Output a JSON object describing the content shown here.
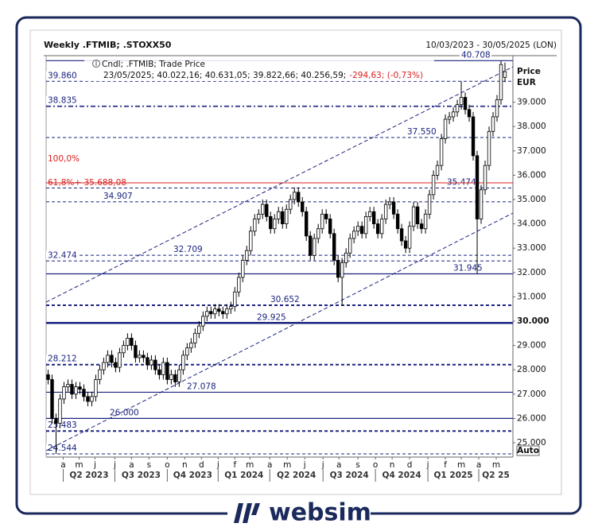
{
  "chart_data": {
    "type": "candlestick",
    "title": "Weekly .FTMIB; .STOXX50",
    "date_range": "10/03/2023 - 30/05/2025 (LON)",
    "legend_title": "Cndl; .FTMIB; Trade Price",
    "legend_ohlc": "23/05/2025; 40.022,16; 40.631,05; 39.822,66; 40.256,59;",
    "legend_change": "-294,63; (-0,73%)",
    "y_axis_label": "Price",
    "y_axis_unit": "EUR",
    "autoscale_label": "Auto",
    "up_color": "#ffffff",
    "down_color": "#000000",
    "xlim": [
      -0.5,
      117
    ],
    "ylim": [
      24412,
      40915
    ],
    "xticks": [
      {
        "value": 3.8,
        "label": "a"
      },
      {
        "value": 7.8,
        "label": "m"
      },
      {
        "value": 11.8,
        "label": "j"
      },
      {
        "value": 16.8,
        "label": "j"
      },
      {
        "value": 21,
        "label": "a"
      },
      {
        "value": 25.4,
        "label": "s"
      },
      {
        "value": 30,
        "label": "o"
      },
      {
        "value": 34.4,
        "label": "n"
      },
      {
        "value": 38.6,
        "label": "d"
      },
      {
        "value": 42.8,
        "label": "j"
      },
      {
        "value": 47,
        "label": "f"
      },
      {
        "value": 50.8,
        "label": "m"
      },
      {
        "value": 55.8,
        "label": "a"
      },
      {
        "value": 60.2,
        "label": "m"
      },
      {
        "value": 64.6,
        "label": "j"
      },
      {
        "value": 69.2,
        "label": "j"
      },
      {
        "value": 73.2,
        "label": "a"
      },
      {
        "value": 78,
        "label": "s"
      },
      {
        "value": 82.4,
        "label": "o"
      },
      {
        "value": 86.6,
        "label": "n"
      },
      {
        "value": 91,
        "label": "d"
      },
      {
        "value": 95.6,
        "label": "j"
      },
      {
        "value": 100,
        "label": "f"
      },
      {
        "value": 104,
        "label": "m"
      },
      {
        "value": 108.4,
        "label": "a"
      },
      {
        "value": 112.8,
        "label": "m"
      }
    ],
    "quarter_labels": [
      {
        "value": 3.8,
        "label": "Q2 2023"
      },
      {
        "value": 16.8,
        "label": "Q3 2023"
      },
      {
        "value": 30,
        "label": "Q4 2023"
      },
      {
        "value": 42.8,
        "label": "Q1 2024"
      },
      {
        "value": 55.8,
        "label": "Q2 2024"
      },
      {
        "value": 69.2,
        "label": "Q3 2024"
      },
      {
        "value": 82.4,
        "label": "Q4 2024"
      },
      {
        "value": 95.6,
        "label": "Q1 2025"
      },
      {
        "value": 108.4,
        "label": "Q2 25"
      }
    ],
    "yticks": [
      {
        "value": 25000,
        "label": "25.000"
      },
      {
        "value": 26000,
        "label": "26.000"
      },
      {
        "value": 27000,
        "label": "27.000"
      },
      {
        "value": 28000,
        "label": "28.000"
      },
      {
        "value": 29000,
        "label": "29.000"
      },
      {
        "value": 30000,
        "label": "30.000"
      },
      {
        "value": 31000,
        "label": "31.000"
      },
      {
        "value": 32000,
        "label": "32.000"
      },
      {
        "value": 33000,
        "label": "33.000"
      },
      {
        "value": 34000,
        "label": "34.000"
      },
      {
        "value": 35000,
        "label": "35.000"
      },
      {
        "value": 36000,
        "label": "36.000"
      },
      {
        "value": 37000,
        "label": "37.000"
      },
      {
        "value": 38000,
        "label": "38.000"
      },
      {
        "value": 39000,
        "label": "39.000"
      }
    ],
    "open": [
      27800,
      27600,
      26000,
      25800,
      26800,
      27300,
      27400,
      27000,
      27300,
      27200,
      26900,
      26700,
      26900,
      27600,
      28000,
      28300,
      28600,
      28300,
      28100,
      28700,
      29000,
      29300,
      29000,
      28500,
      28600,
      28500,
      28200,
      28400,
      28000,
      27800,
      28300,
      27600,
      27800,
      27500,
      28000,
      28600,
      28900,
      29100,
      29500,
      29800,
      30200,
      30400,
      30300,
      30500,
      30400,
      30300,
      30500,
      30600,
      31200,
      31800,
      32500,
      32900,
      33700,
      34200,
      34400,
      34800,
      34300,
      33800,
      34200,
      34500,
      34000,
      34600,
      35000,
      35300,
      34900,
      34500,
      33500,
      32700,
      33400,
      33800,
      34400,
      34200,
      33600,
      32500,
      31800,
      32400,
      32800,
      33400,
      33700,
      33900,
      33600,
      34300,
      34500,
      34000,
      33600,
      34200,
      34800,
      34900,
      34400,
      33800,
      33300,
      33000,
      33900,
      34700,
      34000,
      33800,
      34400,
      35200,
      36000,
      36400,
      37500,
      38300,
      38400,
      38600,
      38900,
      39200,
      38700,
      38400,
      36800,
      34200,
      35400,
      36400,
      37800,
      38400,
      39100,
      40022
    ],
    "high": [
      28000,
      27800,
      26200,
      27000,
      27500,
      27600,
      27600,
      27500,
      27500,
      27400,
      27100,
      27100,
      27800,
      28200,
      28500,
      28800,
      28800,
      28500,
      28900,
      29200,
      29500,
      29500,
      29200,
      28800,
      28800,
      28700,
      28600,
      28600,
      28200,
      28500,
      28500,
      28000,
      28000,
      28200,
      28800,
      29100,
      29300,
      29700,
      30000,
      30400,
      30600,
      30600,
      30700,
      30700,
      30600,
      30700,
      30800,
      31400,
      32000,
      32700,
      33100,
      33900,
      34400,
      34600,
      35000,
      35000,
      34500,
      34400,
      34700,
      34700,
      34800,
      35200,
      35500,
      35500,
      35100,
      34700,
      33700,
      33600,
      34000,
      34600,
      34600,
      34400,
      33800,
      32700,
      32600,
      33000,
      33600,
      33900,
      34100,
      34100,
      34500,
      34700,
      34700,
      34200,
      34400,
      35000,
      35100,
      35100,
      34600,
      34000,
      33500,
      34100,
      34900,
      34900,
      34200,
      34600,
      35400,
      36200,
      36600,
      37700,
      38500,
      38600,
      38800,
      39100,
      39860,
      39400,
      38900,
      38600,
      37000,
      35600,
      36600,
      38000,
      38600,
      39300,
      40708,
      40631
    ],
    "low": [
      27400,
      25800,
      24544,
      25600,
      26600,
      27100,
      26800,
      26800,
      27000,
      26700,
      26500,
      26500,
      26700,
      27400,
      27800,
      28100,
      28100,
      27900,
      27900,
      28500,
      28800,
      28800,
      28300,
      28300,
      28300,
      28000,
      28000,
      27800,
      27600,
      27600,
      27400,
      27400,
      27300,
      27300,
      27800,
      28400,
      28700,
      28900,
      29300,
      29600,
      30000,
      30100,
      30100,
      30200,
      30100,
      30100,
      30300,
      30400,
      31000,
      31600,
      32300,
      32700,
      33500,
      34000,
      34200,
      34100,
      33600,
      33600,
      34000,
      33800,
      33800,
      34400,
      34800,
      34700,
      34300,
      33300,
      32500,
      32500,
      33200,
      33600,
      34000,
      33400,
      32300,
      31600,
      30652,
      32200,
      32600,
      33200,
      33500,
      33400,
      33400,
      34100,
      33800,
      33400,
      33400,
      34000,
      34600,
      34200,
      33600,
      33100,
      32800,
      32800,
      33700,
      33800,
      33600,
      33600,
      34200,
      35000,
      35800,
      36200,
      37300,
      38100,
      38200,
      38400,
      38700,
      38500,
      38200,
      36600,
      31945,
      34000,
      35200,
      36200,
      37600,
      38200,
      38900,
      39823
    ],
    "close": [
      27600,
      26000,
      25800,
      26800,
      27300,
      27400,
      27000,
      27300,
      27200,
      26900,
      26700,
      26900,
      27600,
      28000,
      28300,
      28600,
      28300,
      28100,
      28700,
      29000,
      29300,
      29000,
      28500,
      28600,
      28500,
      28200,
      28400,
      28000,
      27800,
      28300,
      27600,
      27800,
      27500,
      28000,
      28600,
      28900,
      29100,
      29500,
      29800,
      30200,
      30400,
      30300,
      30500,
      30400,
      30300,
      30500,
      30600,
      31200,
      31800,
      32500,
      32900,
      33700,
      34200,
      34400,
      34800,
      34300,
      33800,
      34200,
      34500,
      34000,
      34600,
      35000,
      35300,
      34900,
      34500,
      33500,
      32700,
      33400,
      33800,
      34400,
      34200,
      33600,
      32500,
      31800,
      32400,
      32800,
      33400,
      33700,
      33900,
      33600,
      34300,
      34500,
      34000,
      33600,
      34200,
      34800,
      34900,
      34400,
      33800,
      33300,
      33000,
      33900,
      34700,
      34000,
      33800,
      34400,
      35200,
      36000,
      36400,
      37500,
      38300,
      38400,
      38600,
      38900,
      39200,
      38700,
      38400,
      36800,
      34200,
      35400,
      36400,
      37800,
      38400,
      39100,
      40551,
      40257
    ],
    "levels": [
      {
        "value": 40708,
        "label": "40.708",
        "style": "solid"
      },
      {
        "value": 39860,
        "label": "39.860",
        "style": "dashed"
      },
      {
        "value": 38835,
        "label": "38.835",
        "style": "dashdot"
      },
      {
        "value": 37550,
        "label": "37.550",
        "style": "dashed"
      },
      {
        "value": 35474,
        "label": "35.474",
        "style": "dashed"
      },
      {
        "value": 34907,
        "label": "34.907",
        "style": "dashed"
      },
      {
        "value": 32709,
        "label": "32.709",
        "style": "dashed"
      },
      {
        "value": 32474,
        "label": "32.474",
        "style": "dashed"
      },
      {
        "value": 31945,
        "label": "31.945",
        "style": "solid"
      },
      {
        "value": 30652,
        "label": "30.652",
        "style": "bold-dashed"
      },
      {
        "value": 29925,
        "label": "29.925",
        "style": "thick"
      },
      {
        "value": 28212,
        "label": "28.212",
        "style": "bold-dashed"
      },
      {
        "value": 27078,
        "label": "27.078",
        "style": "solid"
      },
      {
        "value": 26000,
        "label": "26.000",
        "style": "solid"
      },
      {
        "value": 25483,
        "label": "25.483",
        "style": "bold-dashed"
      },
      {
        "value": 24544,
        "label": "24.544",
        "style": "dashed"
      }
    ],
    "fib_levels": [
      {
        "value": 36670,
        "label": "100,0%",
        "line": false
      },
      {
        "value": 35688,
        "label": "61,8%+ 35.688,08",
        "line": true
      }
    ],
    "fib_color": "#d92020",
    "level_color": "#1a237e",
    "trendlines": [
      {
        "x": [
          -0.5,
          117
        ],
        "y": [
          30784,
          40458
        ]
      },
      {
        "x": [
          -0.5,
          117
        ],
        "y": [
          24673,
          34444
        ]
      }
    ]
  },
  "branding": {
    "name": "websim"
  }
}
